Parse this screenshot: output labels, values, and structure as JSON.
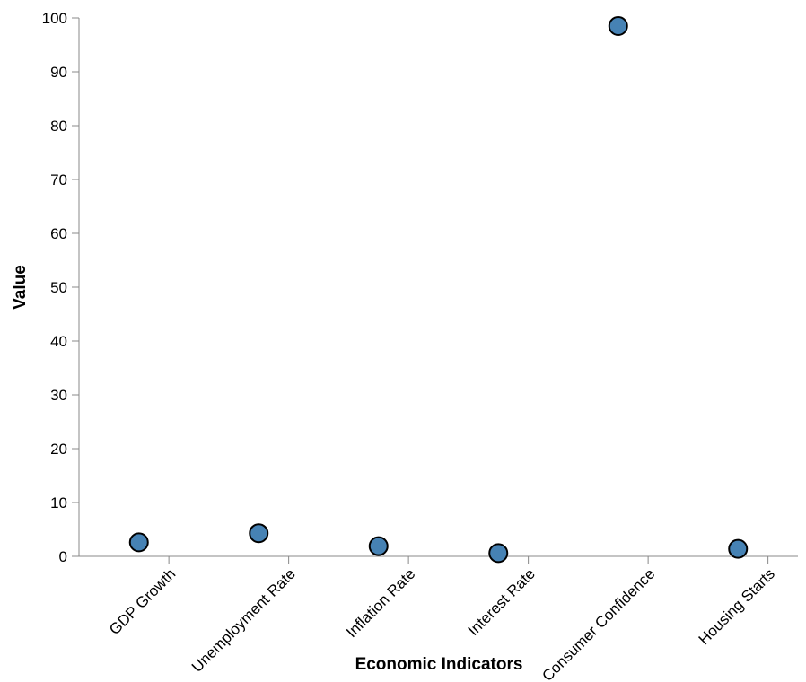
{
  "chart_data": {
    "type": "scatter",
    "title": "",
    "xlabel": "Economic Indicators",
    "ylabel": "Value",
    "categories": [
      "GDP Growth",
      "Unemployment Rate",
      "Inflation Rate",
      "Interest Rate",
      "Consumer Confidence",
      "Housing Starts"
    ],
    "values": [
      2.6,
      4.3,
      1.9,
      0.6,
      98.5,
      1.4
    ],
    "ylim": [
      0,
      100
    ],
    "yticks": [
      0,
      10,
      20,
      30,
      40,
      50,
      60,
      70,
      80,
      90,
      100
    ],
    "grid": false,
    "legend": "none",
    "colors": {
      "point_fill": "#4682b4",
      "point_stroke": "#000000",
      "axis": "#888888"
    }
  }
}
